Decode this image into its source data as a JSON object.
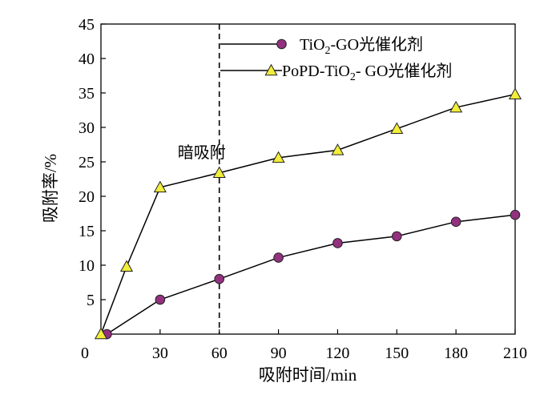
{
  "chart_data": {
    "type": "line",
    "title": "",
    "xlabel": "吸附时间/min",
    "ylabel": "吸附率/%",
    "xlim": [
      0,
      210
    ],
    "ylim": [
      0,
      45
    ],
    "x_ticks": [
      0,
      30,
      60,
      90,
      120,
      150,
      180,
      210
    ],
    "y_ticks": [
      5,
      10,
      15,
      20,
      25,
      30,
      35,
      40,
      45
    ],
    "x_tick_labels": [
      "0",
      "30",
      "60",
      "90",
      "120",
      "150",
      "180",
      "210"
    ],
    "y_tick_labels": [
      "5",
      "10",
      "15",
      "20",
      "25",
      "30",
      "35",
      "40",
      "45"
    ],
    "grid": false,
    "legend_position": "top-right",
    "series": [
      {
        "name_parts": [
          "TiO",
          "2",
          "-GO光催化剂"
        ],
        "marker": "circle",
        "marker_color": "#93317f",
        "points": [
          [
            3,
            0
          ],
          [
            30,
            5
          ],
          [
            60,
            8
          ],
          [
            90,
            11.1
          ],
          [
            120,
            13.2
          ],
          [
            150,
            14.2
          ],
          [
            180,
            16.3
          ],
          [
            210,
            17.3
          ]
        ]
      },
      {
        "name_parts": [
          "PoPD-TiO",
          "2",
          "- GO光催化剂"
        ],
        "marker": "triangle",
        "marker_color": "#f2ee3a",
        "points": [
          [
            0,
            0
          ],
          [
            13,
            9.8
          ],
          [
            30,
            21.3
          ],
          [
            60,
            23.4
          ],
          [
            90,
            25.6
          ],
          [
            120,
            26.7
          ],
          [
            150,
            29.8
          ],
          [
            180,
            32.9
          ],
          [
            210,
            34.8
          ]
        ]
      }
    ],
    "annotations": [
      {
        "text": "暗吸附",
        "type": "dashed-vertical-line",
        "x": 60
      }
    ]
  }
}
